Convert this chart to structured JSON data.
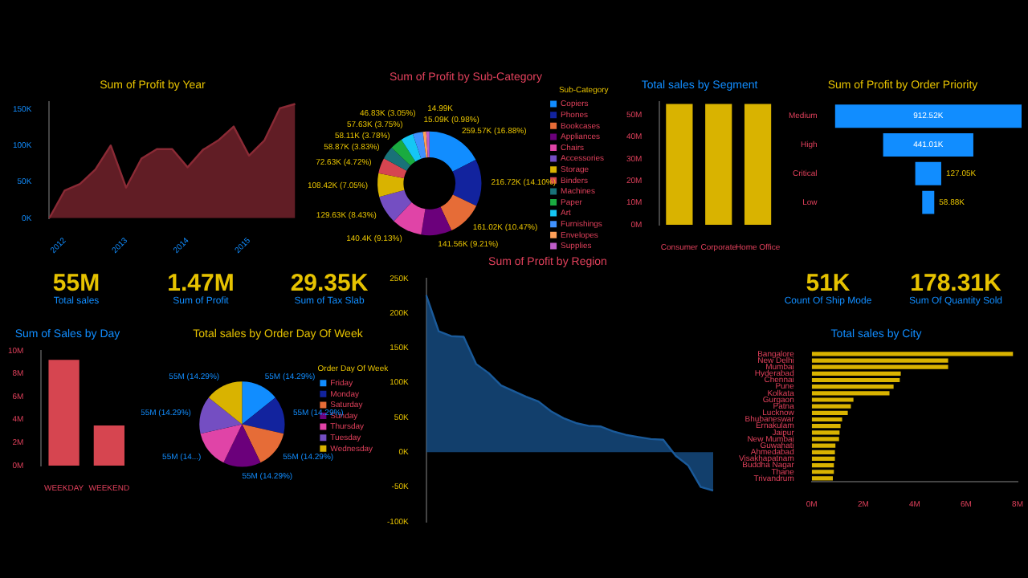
{
  "chart_data": [
    {
      "type": "area",
      "title": "Sum of Profit by Year",
      "categories": [
        null,
        "2012",
        null,
        null,
        null,
        "2013",
        null,
        null,
        null,
        "2014",
        null,
        null,
        null,
        "2015",
        null,
        null,
        null
      ],
      "values": [
        0,
        38,
        47,
        67,
        100,
        42,
        82,
        95,
        95,
        70,
        94,
        107,
        126,
        86,
        107,
        151,
        157
      ],
      "color": "#8a2a35",
      "ylim": [
        0,
        160
      ],
      "yticks": [
        {
          "value": 0,
          "label": "0K"
        },
        {
          "value": 50,
          "label": "50K"
        },
        {
          "value": 100,
          "label": "100K"
        },
        {
          "value": 150,
          "label": "150K"
        }
      ]
    },
    {
      "type": "donut",
      "title": "Sum of Profit by Sub-Category",
      "legend": "right",
      "legend_title": "Sub-Category",
      "categories": [
        "Copiers",
        "Phones",
        "Bookcases",
        "Appliances",
        "Chairs",
        "Accessories",
        "Storage",
        "Binders",
        "Machines",
        "Paper",
        "Art",
        "Furnishings",
        "Envelopes",
        "Supplies"
      ],
      "values": [
        259570,
        216720,
        161020,
        141560,
        140400,
        129630,
        108420,
        72630,
        58870,
        58110,
        57630,
        46830,
        15090,
        14990
      ],
      "value_labels": [
        "259.57K (16.88%)",
        "216.72K (14.10%)",
        "161.02K (10.47%)",
        "141.56K (9.21%)",
        "140.4K (9.13%)",
        "129.63K (8.43%)",
        "108.42K (7.05%)",
        "72.63K (4.72%)",
        "58.87K (3.83%)",
        "58.11K (3.78%)",
        "57.63K (3.75%)",
        "46.83K (3.05%)",
        "15.09K (0.98%)",
        "14.99K"
      ],
      "colors": [
        "#118dff",
        "#12239e",
        "#e66c37",
        "#6b007b",
        "#e044a7",
        "#744ec2",
        "#d9b300",
        "#d64550",
        "#197278",
        "#1aab40",
        "#15c6f4",
        "#4092ff",
        "#ffa058",
        "#be5dc9"
      ]
    },
    {
      "type": "bar",
      "title": "Total sales by Segment",
      "categories": [
        "Consumer",
        "Corporate",
        "Home Office"
      ],
      "values": [
        55,
        55,
        55
      ],
      "color": "#d9b300",
      "ylim": [
        0,
        56
      ],
      "yticks": [
        {
          "value": 0,
          "label": "0M"
        },
        {
          "value": 10,
          "label": "10M"
        },
        {
          "value": 20,
          "label": "20M"
        },
        {
          "value": 30,
          "label": "30M"
        },
        {
          "value": 40,
          "label": "40M"
        },
        {
          "value": 50,
          "label": "50M"
        }
      ]
    },
    {
      "type": "other",
      "title": "Sum of Profit by Order Priority",
      "categories": [
        "Medium",
        "High",
        "Critical",
        "Low"
      ],
      "values": [
        912.52,
        441.01,
        127.05,
        58.88
      ],
      "value_labels": [
        "912.52K",
        "441.01K",
        "127.05K",
        "58.88K"
      ],
      "color": "#118dff"
    },
    {
      "type": "other",
      "title": "Total sales",
      "annotations": [
        "55M"
      ]
    },
    {
      "type": "other",
      "title": "Sum of Profit",
      "annotations": [
        "1.47M"
      ]
    },
    {
      "type": "other",
      "title": "Sum of Tax Slab",
      "annotations": [
        "29.35K"
      ]
    },
    {
      "type": "area",
      "title": "Sum of Profit by Region",
      "categories": [
        null,
        null,
        null,
        null,
        null,
        null,
        null,
        null,
        null,
        null,
        null,
        null,
        null,
        null,
        null,
        null,
        null,
        null,
        null,
        null,
        null,
        null,
        null,
        null
      ],
      "values": [
        226,
        174,
        167,
        166,
        127,
        114,
        96,
        88,
        80,
        73,
        59,
        49,
        42,
        38,
        37,
        30,
        25,
        22,
        19,
        18,
        -5,
        -19,
        -50,
        -55
      ],
      "color": "#1a5a9a",
      "ylim": [
        -100,
        250
      ],
      "yticks": [
        {
          "value": -100,
          "label": "-100K"
        },
        {
          "value": -50,
          "label": "-50K"
        },
        {
          "value": 0,
          "label": "0K"
        },
        {
          "value": 50,
          "label": "50K"
        },
        {
          "value": 100,
          "label": "100K"
        },
        {
          "value": 150,
          "label": "150K"
        },
        {
          "value": 200,
          "label": "200K"
        },
        {
          "value": 250,
          "label": "250K"
        }
      ]
    },
    {
      "type": "other",
      "title": "Count Of Ship Mode",
      "annotations": [
        "51K"
      ]
    },
    {
      "type": "other",
      "title": "Sum Of Quantity Sold",
      "annotations": [
        "178.31K"
      ]
    },
    {
      "type": "bar",
      "title": "Sum of Sales by Day",
      "categories": [
        "WEEKDAY",
        "WEEKEND"
      ],
      "values": [
        9.2,
        3.5
      ],
      "color": "#d64550",
      "ylim": [
        0,
        10
      ],
      "yticks": [
        {
          "value": 0,
          "label": "0M"
        },
        {
          "value": 2,
          "label": "2M"
        },
        {
          "value": 4,
          "label": "4M"
        },
        {
          "value": 6,
          "label": "6M"
        },
        {
          "value": 8,
          "label": "8M"
        },
        {
          "value": 10,
          "label": "10M"
        }
      ]
    },
    {
      "type": "pie",
      "title": "Total sales by Order Day Of Week",
      "legend": "right",
      "legend_title": "Order Day Of Week",
      "categories": [
        "Friday",
        "Monday",
        "Saturday",
        "Sunday",
        "Thursday",
        "Tuesday",
        "Wednesday"
      ],
      "values": [
        55000000,
        55000000,
        55000000,
        55000000,
        55000000,
        55000000,
        55000000
      ],
      "value_labels": [
        "55M (14.29%)",
        "55M (14.29%)",
        "55M (14.29%)",
        "55M (14.29%)",
        "55M (14...)",
        "55M (14.29%)",
        "55M (14.29%)"
      ],
      "colors": [
        "#118dff",
        "#12239e",
        "#e66c37",
        "#6b007b",
        "#e044a7",
        "#744ec2",
        "#d9b300"
      ]
    },
    {
      "type": "bar",
      "orientation": "horizontal",
      "title": "Total sales by City",
      "categories": [
        "Bangalore",
        "New Delhi",
        "Mumbai",
        "Hyderabad",
        "Chennai",
        "Pune",
        "Kolkata",
        "Gurgaon",
        "Patna",
        "Lucknow",
        "Bhubaneswar",
        "Ernakulam",
        "Jaipur",
        "New Mumbai",
        "Guwahati",
        "Ahmedabad",
        "Visakhapatnam",
        "Buddha Nagar",
        "Thane",
        "Trivandrum"
      ],
      "values": [
        7.82,
        5.3,
        5.3,
        3.46,
        3.42,
        3.18,
        3.02,
        1.62,
        1.52,
        1.4,
        1.18,
        1.12,
        1.08,
        1.06,
        0.92,
        0.9,
        0.9,
        0.86,
        0.86,
        0.82
      ],
      "color": "#d9b300",
      "xlim": [
        0,
        8
      ],
      "xticks": [
        {
          "value": 0,
          "label": "0M"
        },
        {
          "value": 2,
          "label": "2M"
        },
        {
          "value": 4,
          "label": "4M"
        },
        {
          "value": 6,
          "label": "6M"
        },
        {
          "value": 8,
          "label": "8M"
        }
      ]
    }
  ]
}
